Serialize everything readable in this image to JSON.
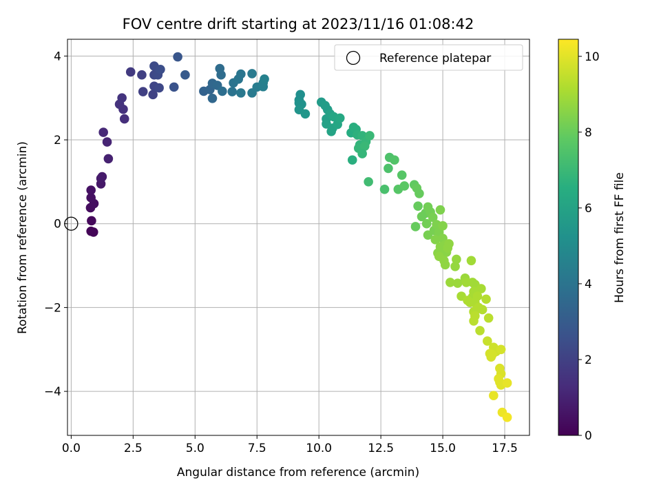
{
  "chart_data": {
    "type": "scatter",
    "title": "FOV centre drift starting at 2023/11/16 01:08:42",
    "xlabel": "Angular distance from reference (arcmin)",
    "ylabel": "Rotation from reference (arcmin)",
    "xlim": [
      -0.15,
      18.5
    ],
    "ylim": [
      -5.05,
      4.4
    ],
    "xticks": [
      0.0,
      2.5,
      5.0,
      7.5,
      10.0,
      12.5,
      15.0,
      17.5
    ],
    "xtick_labels": [
      "0.0",
      "2.5",
      "5.0",
      "7.5",
      "10.0",
      "12.5",
      "15.0",
      "17.5"
    ],
    "yticks": [
      -4,
      -2,
      0,
      2,
      4
    ],
    "ytick_labels": [
      "−4",
      "−2",
      "0",
      "2",
      "4"
    ],
    "grid": true,
    "legend": {
      "placement": "top-right",
      "entries": [
        "Reference platepar"
      ]
    },
    "reference_point": {
      "x": 0.0,
      "y": 0.0,
      "label": "Reference platepar"
    },
    "colorbar": {
      "label": "Hours from first FF file",
      "range": [
        0,
        10.45
      ],
      "ticks": [
        0,
        2,
        4,
        6,
        8,
        10
      ],
      "tick_labels": [
        "0",
        "2",
        "4",
        "6",
        "8",
        "10"
      ],
      "colormap": "viridis"
    },
    "points": [
      {
        "x": 0.8,
        "y": -0.18,
        "c": 0.1
      },
      {
        "x": 0.9,
        "y": -0.2,
        "c": 0.15
      },
      {
        "x": 0.82,
        "y": 0.07,
        "c": 0.25
      },
      {
        "x": 0.78,
        "y": 0.38,
        "c": 0.35
      },
      {
        "x": 0.92,
        "y": 0.48,
        "c": 0.4
      },
      {
        "x": 0.8,
        "y": 0.62,
        "c": 0.45
      },
      {
        "x": 0.8,
        "y": 0.8,
        "c": 0.5
      },
      {
        "x": 1.2,
        "y": 0.95,
        "c": 0.7
      },
      {
        "x": 1.2,
        "y": 1.08,
        "c": 0.75
      },
      {
        "x": 1.25,
        "y": 1.12,
        "c": 0.8
      },
      {
        "x": 1.5,
        "y": 1.55,
        "c": 1.0
      },
      {
        "x": 1.45,
        "y": 1.95,
        "c": 1.1
      },
      {
        "x": 1.3,
        "y": 2.18,
        "c": 1.2
      },
      {
        "x": 2.15,
        "y": 2.5,
        "c": 1.4
      },
      {
        "x": 2.1,
        "y": 2.73,
        "c": 1.5
      },
      {
        "x": 1.95,
        "y": 2.85,
        "c": 1.55
      },
      {
        "x": 2.05,
        "y": 3.0,
        "c": 1.6
      },
      {
        "x": 2.4,
        "y": 3.62,
        "c": 1.8
      },
      {
        "x": 2.9,
        "y": 3.15,
        "c": 2.0
      },
      {
        "x": 2.85,
        "y": 3.55,
        "c": 2.0
      },
      {
        "x": 3.3,
        "y": 3.08,
        "c": 2.1
      },
      {
        "x": 3.35,
        "y": 3.28,
        "c": 2.2
      },
      {
        "x": 3.55,
        "y": 3.24,
        "c": 2.3
      },
      {
        "x": 3.35,
        "y": 3.55,
        "c": 2.3
      },
      {
        "x": 3.5,
        "y": 3.55,
        "c": 2.4
      },
      {
        "x": 3.35,
        "y": 3.76,
        "c": 2.4
      },
      {
        "x": 3.6,
        "y": 3.68,
        "c": 2.5
      },
      {
        "x": 4.15,
        "y": 3.26,
        "c": 2.7
      },
      {
        "x": 4.3,
        "y": 3.98,
        "c": 2.8
      },
      {
        "x": 4.6,
        "y": 3.55,
        "c": 3.0
      },
      {
        "x": 5.35,
        "y": 3.16,
        "c": 3.3
      },
      {
        "x": 5.6,
        "y": 3.2,
        "c": 3.4
      },
      {
        "x": 5.7,
        "y": 3.35,
        "c": 3.5
      },
      {
        "x": 5.7,
        "y": 2.99,
        "c": 3.5
      },
      {
        "x": 5.9,
        "y": 3.3,
        "c": 3.6
      },
      {
        "x": 6.05,
        "y": 3.55,
        "c": 3.7
      },
      {
        "x": 6.0,
        "y": 3.7,
        "c": 3.7
      },
      {
        "x": 6.1,
        "y": 3.16,
        "c": 3.8
      },
      {
        "x": 6.5,
        "y": 3.15,
        "c": 4.0
      },
      {
        "x": 6.55,
        "y": 3.36,
        "c": 4.0
      },
      {
        "x": 6.75,
        "y": 3.45,
        "c": 4.1
      },
      {
        "x": 6.85,
        "y": 3.57,
        "c": 4.1
      },
      {
        "x": 6.85,
        "y": 3.12,
        "c": 4.2
      },
      {
        "x": 7.3,
        "y": 3.12,
        "c": 4.3
      },
      {
        "x": 7.3,
        "y": 3.58,
        "c": 4.3
      },
      {
        "x": 7.5,
        "y": 3.26,
        "c": 4.4
      },
      {
        "x": 7.75,
        "y": 3.27,
        "c": 4.5
      },
      {
        "x": 7.75,
        "y": 3.36,
        "c": 4.5
      },
      {
        "x": 7.8,
        "y": 3.45,
        "c": 4.6
      },
      {
        "x": 9.25,
        "y": 3.08,
        "c": 5.2
      },
      {
        "x": 9.2,
        "y": 2.95,
        "c": 5.2
      },
      {
        "x": 9.2,
        "y": 2.88,
        "c": 5.3
      },
      {
        "x": 9.3,
        "y": 2.85,
        "c": 5.3
      },
      {
        "x": 9.2,
        "y": 2.72,
        "c": 5.4
      },
      {
        "x": 9.45,
        "y": 2.62,
        "c": 5.5
      },
      {
        "x": 10.1,
        "y": 2.9,
        "c": 5.7
      },
      {
        "x": 10.25,
        "y": 2.82,
        "c": 5.8
      },
      {
        "x": 10.35,
        "y": 2.72,
        "c": 5.8
      },
      {
        "x": 10.3,
        "y": 2.5,
        "c": 5.9
      },
      {
        "x": 10.45,
        "y": 2.62,
        "c": 6.0
      },
      {
        "x": 10.3,
        "y": 2.38,
        "c": 6.0
      },
      {
        "x": 10.55,
        "y": 2.28,
        "c": 6.1
      },
      {
        "x": 10.5,
        "y": 2.2,
        "c": 6.1
      },
      {
        "x": 10.6,
        "y": 2.55,
        "c": 6.2
      },
      {
        "x": 10.75,
        "y": 2.37,
        "c": 6.2
      },
      {
        "x": 10.85,
        "y": 2.52,
        "c": 6.3
      },
      {
        "x": 11.3,
        "y": 2.17,
        "c": 6.5
      },
      {
        "x": 11.4,
        "y": 2.3,
        "c": 6.6
      },
      {
        "x": 11.5,
        "y": 2.25,
        "c": 6.6
      },
      {
        "x": 11.55,
        "y": 2.12,
        "c": 6.7
      },
      {
        "x": 11.75,
        "y": 2.1,
        "c": 6.8
      },
      {
        "x": 11.65,
        "y": 1.88,
        "c": 6.8
      },
      {
        "x": 11.6,
        "y": 1.8,
        "c": 6.9
      },
      {
        "x": 11.9,
        "y": 1.96,
        "c": 6.9
      },
      {
        "x": 11.85,
        "y": 1.85,
        "c": 7.0
      },
      {
        "x": 12.05,
        "y": 2.1,
        "c": 7.0
      },
      {
        "x": 11.35,
        "y": 1.52,
        "c": 6.6
      },
      {
        "x": 11.75,
        "y": 1.67,
        "c": 6.9
      },
      {
        "x": 12.0,
        "y": 1.0,
        "c": 7.2
      },
      {
        "x": 12.65,
        "y": 0.82,
        "c": 7.4
      },
      {
        "x": 12.8,
        "y": 1.32,
        "c": 7.5
      },
      {
        "x": 12.85,
        "y": 1.58,
        "c": 7.5
      },
      {
        "x": 13.05,
        "y": 1.52,
        "c": 7.6
      },
      {
        "x": 13.2,
        "y": 0.82,
        "c": 7.7
      },
      {
        "x": 13.35,
        "y": 1.16,
        "c": 7.7
      },
      {
        "x": 13.45,
        "y": 0.9,
        "c": 7.8
      },
      {
        "x": 13.85,
        "y": 0.93,
        "c": 7.9
      },
      {
        "x": 13.95,
        "y": 0.85,
        "c": 8.0
      },
      {
        "x": 14.05,
        "y": 0.72,
        "c": 8.0
      },
      {
        "x": 14.0,
        "y": 0.42,
        "c": 8.0
      },
      {
        "x": 13.9,
        "y": -0.07,
        "c": 8.0
      },
      {
        "x": 14.15,
        "y": 0.17,
        "c": 8.1
      },
      {
        "x": 14.3,
        "y": 0.25,
        "c": 8.1
      },
      {
        "x": 14.4,
        "y": 0.4,
        "c": 8.2
      },
      {
        "x": 14.5,
        "y": 0.28,
        "c": 8.2
      },
      {
        "x": 14.35,
        "y": 0.0,
        "c": 8.2
      },
      {
        "x": 14.6,
        "y": 0.15,
        "c": 8.3
      },
      {
        "x": 14.4,
        "y": -0.27,
        "c": 8.3
      },
      {
        "x": 14.65,
        "y": -0.16,
        "c": 8.3
      },
      {
        "x": 14.75,
        "y": -0.02,
        "c": 8.4
      },
      {
        "x": 14.9,
        "y": 0.33,
        "c": 8.4
      },
      {
        "x": 14.85,
        "y": -0.2,
        "c": 8.4
      },
      {
        "x": 14.7,
        "y": -0.38,
        "c": 8.5
      },
      {
        "x": 15.0,
        "y": -0.05,
        "c": 8.5
      },
      {
        "x": 15.0,
        "y": -0.35,
        "c": 8.5
      },
      {
        "x": 14.9,
        "y": -0.55,
        "c": 8.6
      },
      {
        "x": 15.1,
        "y": -0.5,
        "c": 8.6
      },
      {
        "x": 15.15,
        "y": -0.68,
        "c": 8.6
      },
      {
        "x": 15.05,
        "y": -0.7,
        "c": 8.6
      },
      {
        "x": 14.8,
        "y": -0.7,
        "c": 8.6
      },
      {
        "x": 14.85,
        "y": -0.78,
        "c": 8.7
      },
      {
        "x": 15.2,
        "y": -0.58,
        "c": 8.7
      },
      {
        "x": 15.25,
        "y": -0.48,
        "c": 8.7
      },
      {
        "x": 15.1,
        "y": -0.98,
        "c": 8.7
      },
      {
        "x": 15.05,
        "y": -0.88,
        "c": 8.7
      },
      {
        "x": 15.55,
        "y": -0.85,
        "c": 8.8
      },
      {
        "x": 15.5,
        "y": -1.02,
        "c": 8.8
      },
      {
        "x": 15.3,
        "y": -1.4,
        "c": 8.9
      },
      {
        "x": 15.6,
        "y": -1.42,
        "c": 8.9
      },
      {
        "x": 15.9,
        "y": -1.3,
        "c": 8.9
      },
      {
        "x": 15.95,
        "y": -1.4,
        "c": 9.0
      },
      {
        "x": 16.2,
        "y": -1.4,
        "c": 9.0
      },
      {
        "x": 16.3,
        "y": -1.45,
        "c": 9.0
      },
      {
        "x": 16.55,
        "y": -1.55,
        "c": 9.1
      },
      {
        "x": 16.25,
        "y": -1.62,
        "c": 9.1
      },
      {
        "x": 15.75,
        "y": -1.73,
        "c": 9.1
      },
      {
        "x": 16.2,
        "y": -1.75,
        "c": 9.1
      },
      {
        "x": 16.4,
        "y": -1.73,
        "c": 9.2
      },
      {
        "x": 16.0,
        "y": -1.83,
        "c": 9.2
      },
      {
        "x": 16.1,
        "y": -1.88,
        "c": 9.2
      },
      {
        "x": 16.3,
        "y": -1.88,
        "c": 9.2
      },
      {
        "x": 16.35,
        "y": -2.05,
        "c": 9.3
      },
      {
        "x": 16.25,
        "y": -2.1,
        "c": 9.3
      },
      {
        "x": 16.45,
        "y": -2.0,
        "c": 9.3
      },
      {
        "x": 16.6,
        "y": -2.05,
        "c": 9.3
      },
      {
        "x": 16.75,
        "y": -1.8,
        "c": 9.3
      },
      {
        "x": 16.3,
        "y": -2.2,
        "c": 9.4
      },
      {
        "x": 16.25,
        "y": -2.32,
        "c": 9.4
      },
      {
        "x": 16.5,
        "y": -2.55,
        "c": 9.4
      },
      {
        "x": 16.85,
        "y": -2.25,
        "c": 9.4
      },
      {
        "x": 16.15,
        "y": -0.88,
        "c": 9.0
      },
      {
        "x": 16.8,
        "y": -2.8,
        "c": 9.6
      },
      {
        "x": 17.05,
        "y": -2.95,
        "c": 9.7
      },
      {
        "x": 17.15,
        "y": -3.05,
        "c": 9.7
      },
      {
        "x": 17.35,
        "y": -3.0,
        "c": 9.8
      },
      {
        "x": 16.9,
        "y": -3.1,
        "c": 9.8
      },
      {
        "x": 16.95,
        "y": -3.18,
        "c": 9.8
      },
      {
        "x": 17.0,
        "y": -3.12,
        "c": 9.8
      },
      {
        "x": 17.3,
        "y": -3.45,
        "c": 9.9
      },
      {
        "x": 17.35,
        "y": -3.58,
        "c": 9.9
      },
      {
        "x": 17.25,
        "y": -3.7,
        "c": 10.0
      },
      {
        "x": 17.3,
        "y": -3.78,
        "c": 10.0
      },
      {
        "x": 17.35,
        "y": -3.85,
        "c": 10.0
      },
      {
        "x": 17.6,
        "y": -3.8,
        "c": 10.1
      },
      {
        "x": 17.05,
        "y": -4.1,
        "c": 10.1
      },
      {
        "x": 17.4,
        "y": -4.5,
        "c": 10.2
      },
      {
        "x": 17.6,
        "y": -4.62,
        "c": 10.3
      }
    ]
  }
}
